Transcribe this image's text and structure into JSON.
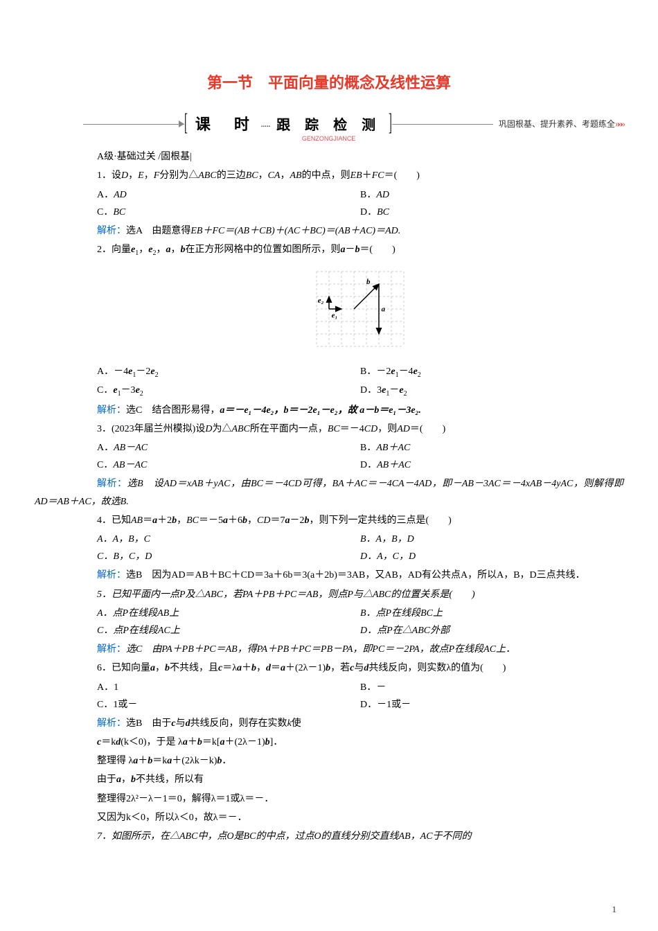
{
  "title": "第一节　平面向量的概念及线性运算",
  "banner": {
    "keshi": "课　时",
    "genzong": "跟 踪 检 测",
    "pinyin": "GENZONGJIANCE",
    "note": "巩固根基、提升素养、考题练全",
    "chevrons": "»»»"
  },
  "level": "A级·基础过关 /固根基|",
  "q1": {
    "stem_a": "1．设",
    "stem_b": "D",
    "stem_c": "，",
    "stem_d": "E",
    "stem_e": "，",
    "stem_f": "F",
    "stem_g": "分别为△",
    "stem_h": "ABC",
    "stem_i": "的三边",
    "stem_j": "BC",
    "stem_k": "，",
    "stem_l": "CA",
    "stem_m": "，",
    "stem_n": "AB",
    "stem_o": "的中点，则",
    "stem_p": "EB",
    "stem_q": "＋",
    "stem_r": "FC",
    "stem_s": "＝(　　)",
    "optA": "A．",
    "optA_v": "AD",
    "optB": "B．",
    "optB_v": "AD",
    "optC": "C．",
    "optC_v": "BC",
    "optD": "D．",
    "optD_v": "BC",
    "ana_label": "解析：",
    "ana": "选A　由题意得",
    "ana_eq": "EB＋FC＝(AB＋CB)＋(AC＋BC)＝(AB＋AC)＝AD."
  },
  "q2": {
    "stem_a": "2．向量",
    "stem_b": "e",
    "sub1": "1",
    "stem_c": "，",
    "stem_d": "e",
    "sub2": "2",
    "stem_e": "，",
    "stem_f": "a",
    "stem_g": "，",
    "stem_h": "b",
    "stem_i": "在正方形网格中的位置如图所示，则",
    "stem_j": "a",
    "stem_k": "－",
    "stem_l": "b",
    "stem_m": "＝(　　)",
    "optA_pre": "A．－4",
    "optA_e1": "e",
    "optA_s1": "1",
    "optA_mid": "－2",
    "optA_e2": "e",
    "optA_s2": "2",
    "optB_pre": "B．－2",
    "optB_e1": "e",
    "optB_s1": "1",
    "optB_mid": "－4",
    "optB_e2": "e",
    "optB_s2": "2",
    "optC_pre": "C．",
    "optC_e1": "e",
    "optC_s1": "1",
    "optC_mid": "－3",
    "optC_e2": "e",
    "optC_s2": "2",
    "optD_pre": "D．3",
    "optD_e1": "e",
    "optD_s1": "1",
    "optD_mid": "－",
    "optD_e2": "e",
    "optD_s2": "2",
    "ana_label": "解析：",
    "ana_a": "选C　结合图形易得，",
    "ana_b": "a＝－e₁－4e₂，b＝－2e₁－e₂，故 a－b＝e₁－3e₂."
  },
  "q3": {
    "stem": "3．(2023年届兰州模拟)设",
    "D": "D",
    "mid1": "为△",
    "ABC": "ABC",
    "mid2": "所在平面内一点，",
    "BC": "BC",
    "eq": "＝－4",
    "CD": "CD",
    "mid3": "，则",
    "AD": "AD",
    "end": "＝(　　)",
    "optA": "A．",
    "optA_v": "AB－AC",
    "optB": "B．",
    "optB_v": "AB＋AC",
    "optC": "C．",
    "optC_v": "AB－AC",
    "optD": "D．",
    "optD_v": "AB＋AC",
    "ana_label": "解析：",
    "ana": "选B　设AD＝xAB＋yAC，由BC＝－4CD可得，BA＋AC＝－4CA－4AD，即－AB－3AC＝－4xAB－4yAC，则解得即AD＝AB＋AC，故选B."
  },
  "q4": {
    "stem_a": "4．已知",
    "AB": "AB",
    "eq1": "＝",
    "a1": "a",
    "p2": "＋2",
    "b1": "b",
    "c1": "，",
    "BC": "BC",
    "eq2": "＝－5",
    "a2": "a",
    "p6": "＋6",
    "b2": "b",
    "c2": "，",
    "CD": "CD",
    "eq3": "＝7",
    "a3": "a",
    "m2": "－2",
    "b3": "b",
    "tail": "，则下列一定共线的三点是(　　)",
    "optA": "A．A，B，C",
    "optB": "B．A，B，D",
    "optC": "C．B，C，D",
    "optD": "D．A，C，D",
    "ana_label": "解析：",
    "ana": "选B　因为AD＝AB＋BC＋CD＝3a＋6b＝3(a＋2b)＝3AB，又AB，AD有公共点A，所以A，B，D三点共线．"
  },
  "q5": {
    "stem": "5．已知平面内一点P及△ABC，若PA＋PB＋PC＝AB，则点P与△ABC的位置关系是(　　)",
    "optA": "A．点P在线段AB上",
    "optB": "B．点P在线段BC上",
    "optC": "C．点P在线段AC上",
    "optD": "D．点P在△ABC外部",
    "ana_label": "解析：",
    "ana": "选C　由PA＋PB＋PC＝AB，得PA＋PB＋PC＝PB－PA，即PC＝－2PA，故点P在线段AC上．"
  },
  "q6": {
    "stem_a": "6．已知向量",
    "a": "a",
    "c1": "，",
    "b": "b",
    "mid": "不共线，且",
    "c": "c",
    "eq1": "＝λ",
    "a2": "a",
    "plus": "＋",
    "b2": "b",
    "c2": "，",
    "d": "d",
    "eq2": "＝",
    "a3": "a",
    "plus2": "＋(2λ－1)",
    "b3": "b",
    "tail": "，若",
    "c3": "c",
    "and": "与",
    "d2": "d",
    "tail2": "共线反向，则实数λ的值为(　　)",
    "optA": "A．1",
    "optB": "B．－",
    "optC": "C．1或－",
    "optD": "D．－1或－",
    "ana_label": "解析：",
    "ana1": "选B　由于",
    "ana_c": "c",
    "ana_and": "与",
    "ana_d": "d",
    "ana2": "共线反向，则存在实数",
    "ana_k": "k",
    "ana3": "使",
    "line2_a": "c",
    "line2_eq": "＝k",
    "line2_d": "d",
    "line2_p": "(k＜0)，于是 λ",
    "line2_a2": "a",
    "line2_plus": "＋",
    "line2_b": "b",
    "line2_eq2": "＝k[",
    "line2_a3": "a",
    "line2_plus2": "＋(2λ－1)",
    "line2_b2": "b",
    "line2_end": "]．",
    "line3": "整理得 λ",
    "line3_a": "a",
    "line3_p": "＋",
    "line3_b": "b",
    "line3_eq": "＝k",
    "line3_a2": "a",
    "line3_p2": "＋(2λk－k)",
    "line3_b2": "b",
    "line3_end": "．",
    "line4": "由于",
    "line4_a": "a",
    "line4_c": "，",
    "line4_b": "b",
    "line4_end": "不共线，所以有",
    "line5": "整理得2λ²－λ－1＝0，解得λ＝1或λ＝－．",
    "line6": "又因为k＜0，所以λ＜0，故λ＝－．"
  },
  "q7": {
    "stem": "7．如图所示，在△ABC中，点O是BC的中点，过点O的直线分别交直线AB，AC于不同的"
  },
  "diagram": {
    "grid_color": "#cccccc",
    "dash": "3,3",
    "vec_color": "#000000",
    "cols": 7,
    "rows": 6,
    "cell": 18,
    "e1_label": "e₁",
    "e2_label": "e₂",
    "a_label": "a",
    "b_label": "b"
  },
  "pagenum": "1"
}
